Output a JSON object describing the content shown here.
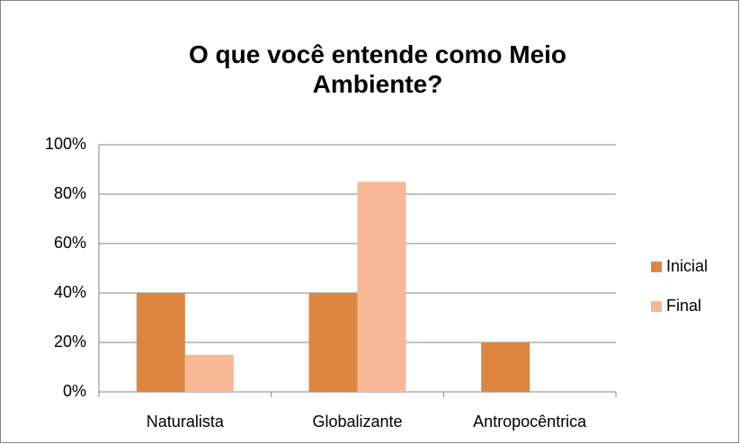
{
  "chart_data": {
    "type": "bar",
    "title": "O que você entende como Meio Ambiente?",
    "categories": [
      "Naturalista",
      "Globalizante",
      "Antropocêntrica"
    ],
    "series": [
      {
        "name": "Inicial",
        "color": "#dd8642",
        "values": [
          40,
          40,
          20
        ]
      },
      {
        "name": "Final",
        "color": "#f8b896",
        "values": [
          15,
          85,
          0
        ]
      }
    ],
    "ylim": [
      0,
      100
    ],
    "yticks": [
      {
        "value": 0,
        "label": "0%"
      },
      {
        "value": 20,
        "label": "20%"
      },
      {
        "value": 40,
        "label": "40%"
      },
      {
        "value": 60,
        "label": "60%"
      },
      {
        "value": 80,
        "label": "80%"
      },
      {
        "value": 100,
        "label": "100%"
      }
    ],
    "grid": true,
    "legend": "right"
  }
}
